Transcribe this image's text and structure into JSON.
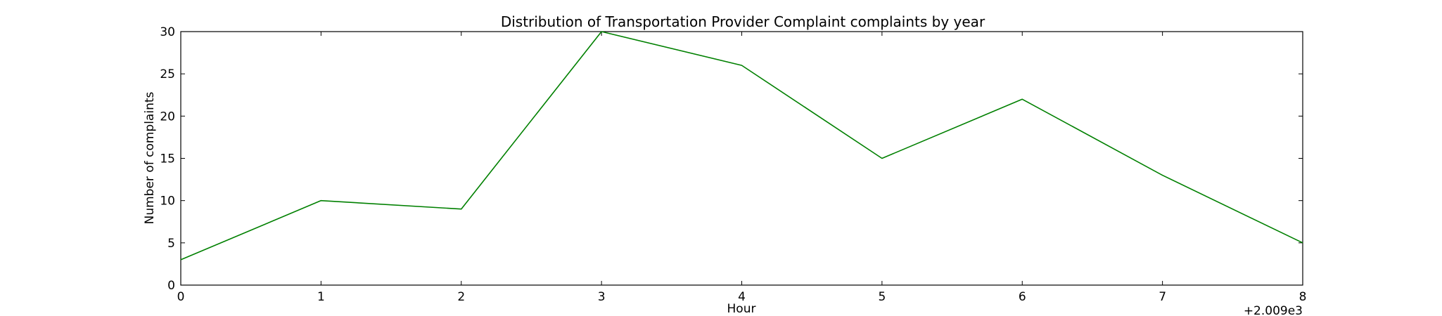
{
  "chart_data": {
    "type": "line",
    "title": "Distribution of  Transportation Provider Complaint complaints by year",
    "xlabel": "Hour",
    "ylabel": "Number of complaints",
    "x_offset_label": "+2.009e3",
    "x": [
      0,
      1,
      2,
      3,
      4,
      5,
      6,
      7,
      8
    ],
    "x_tick_labels": [
      "0",
      "1",
      "2",
      "3",
      "4",
      "5",
      "6",
      "7",
      "8"
    ],
    "y_ticks": [
      0,
      5,
      10,
      15,
      20,
      25,
      30
    ],
    "y_tick_labels": [
      "0",
      "5",
      "10",
      "15",
      "20",
      "25",
      "30"
    ],
    "xlim": [
      0,
      8
    ],
    "ylim": [
      0,
      30
    ],
    "grid": false,
    "series": [
      {
        "values": [
          3,
          10,
          9,
          30,
          26,
          15,
          22,
          13,
          5
        ],
        "color": "#008000"
      }
    ]
  }
}
